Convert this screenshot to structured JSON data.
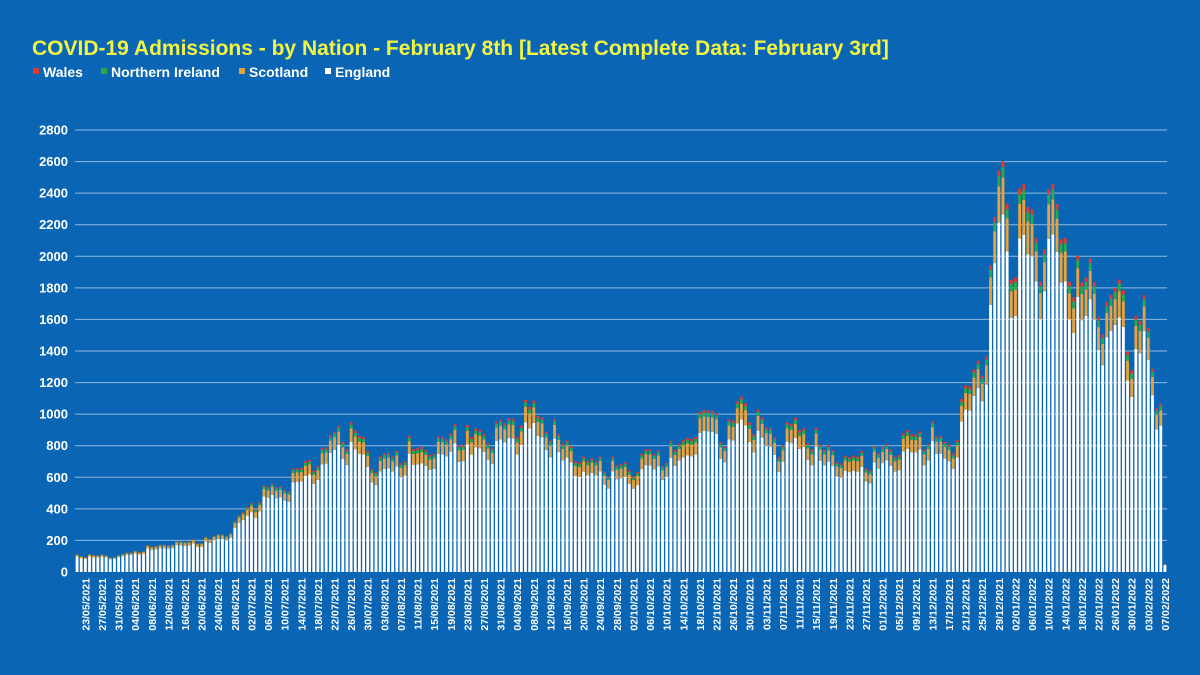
{
  "chart_data": {
    "type": "bar",
    "stacked": true,
    "title": "COVID-19 Admissions - by Nation - February 8th [Latest Complete Data: February 3rd]",
    "xlabel": "",
    "ylabel": "",
    "ylim": [
      0,
      2800
    ],
    "yticks": [
      0,
      200,
      400,
      600,
      800,
      1000,
      1200,
      1400,
      1600,
      1800,
      2000,
      2200,
      2400,
      2600,
      2800
    ],
    "grid": true,
    "legend_position": "top-left",
    "x_start_date": "2021-05-21",
    "x_end_date": "2022-02-07",
    "x_tick_labels": [
      "23/05/2021",
      "27/05/2021",
      "31/05/2021",
      "04/06/2021",
      "08/06/2021",
      "12/06/2021",
      "16/06/2021",
      "20/06/2021",
      "24/06/2021",
      "28/06/2021",
      "02/07/2021",
      "06/07/2021",
      "10/07/2021",
      "14/07/2021",
      "18/07/2021",
      "22/07/2021",
      "26/07/2021",
      "30/07/2021",
      "03/08/2021",
      "07/08/2021",
      "11/08/2021",
      "15/08/2021",
      "19/08/2021",
      "23/08/2021",
      "27/08/2021",
      "31/08/2021",
      "04/09/2021",
      "08/09/2021",
      "12/09/2021",
      "16/09/2021",
      "20/09/2021",
      "24/09/2021",
      "28/09/2021",
      "02/10/2021",
      "06/10/2021",
      "10/10/2021",
      "14/10/2021",
      "18/10/2021",
      "22/10/2021",
      "26/10/2021",
      "30/10/2021",
      "03/11/2021",
      "07/11/2021",
      "11/11/2021",
      "15/11/2021",
      "19/11/2021",
      "23/11/2021",
      "27/11/2021",
      "01/12/2021",
      "05/12/2021",
      "09/12/2021",
      "13/12/2021",
      "17/12/2021",
      "21/12/2021",
      "25/12/2021",
      "29/12/2021",
      "02/01/2022",
      "06/01/2022",
      "10/01/2022",
      "14/01/2022",
      "18/01/2022",
      "22/01/2022",
      "26/01/2022",
      "30/01/2022",
      "03/02/2022",
      "07/02/2022"
    ],
    "series": [
      {
        "name": "England",
        "color": "#ffffff"
      },
      {
        "name": "Scotland",
        "color": "#e8a33c"
      },
      {
        "name": "Northern Ireland",
        "color": "#2aa84a"
      },
      {
        "name": "Wales",
        "color": "#e03a2e"
      }
    ],
    "totals_anchors": [
      [
        "2021-05-21",
        110
      ],
      [
        "2021-05-31",
        105
      ],
      [
        "2021-06-06",
        150
      ],
      [
        "2021-06-12",
        185
      ],
      [
        "2021-06-20",
        205
      ],
      [
        "2021-06-26",
        250
      ],
      [
        "2021-06-30",
        380
      ],
      [
        "2021-07-06",
        540
      ],
      [
        "2021-07-11",
        570
      ],
      [
        "2021-07-14",
        690
      ],
      [
        "2021-07-18",
        720
      ],
      [
        "2021-07-22",
        900
      ],
      [
        "2021-07-27",
        900
      ],
      [
        "2021-08-01",
        700
      ],
      [
        "2021-08-07",
        780
      ],
      [
        "2021-08-14",
        800
      ],
      [
        "2021-08-20",
        900
      ],
      [
        "2021-08-27",
        880
      ],
      [
        "2021-09-02",
        960
      ],
      [
        "2021-09-08",
        1060
      ],
      [
        "2021-09-13",
        900
      ],
      [
        "2021-09-20",
        720
      ],
      [
        "2021-09-26",
        700
      ],
      [
        "2021-10-01",
        660
      ],
      [
        "2021-10-06",
        770
      ],
      [
        "2021-10-11",
        760
      ],
      [
        "2021-10-16",
        900
      ],
      [
        "2021-10-20",
        1060
      ],
      [
        "2021-10-24",
        880
      ],
      [
        "2021-10-28",
        1100
      ],
      [
        "2021-11-02",
        950
      ],
      [
        "2021-11-06",
        840
      ],
      [
        "2021-11-10",
        960
      ],
      [
        "2021-11-16",
        820
      ],
      [
        "2021-11-22",
        730
      ],
      [
        "2021-11-28",
        740
      ],
      [
        "2021-12-03",
        800
      ],
      [
        "2021-12-09",
        890
      ],
      [
        "2021-12-14",
        880
      ],
      [
        "2021-12-18",
        800
      ],
      [
        "2021-12-21",
        1180
      ],
      [
        "2021-12-24",
        1300
      ],
      [
        "2021-12-26",
        1500
      ],
      [
        "2021-12-28",
        2300
      ],
      [
        "2021-12-30",
        2600
      ],
      [
        "2022-01-01",
        2050
      ],
      [
        "2022-01-04",
        2400
      ],
      [
        "2022-01-08",
        2100
      ],
      [
        "2022-01-11",
        2420
      ],
      [
        "2022-01-14",
        2100
      ],
      [
        "2022-01-17",
        1850
      ],
      [
        "2022-01-20",
        1950
      ],
      [
        "2022-01-23",
        1650
      ],
      [
        "2022-01-27",
        1850
      ],
      [
        "2022-01-30",
        1450
      ],
      [
        "2022-02-02",
        1700
      ],
      [
        "2022-02-05",
        1150
      ],
      [
        "2022-02-06",
        1200
      ],
      [
        "2022-02-07",
        50
      ]
    ],
    "share": {
      "England": 0.87,
      "Scotland": 0.09,
      "Northern Ireland": 0.025,
      "Wales": 0.015
    }
  }
}
